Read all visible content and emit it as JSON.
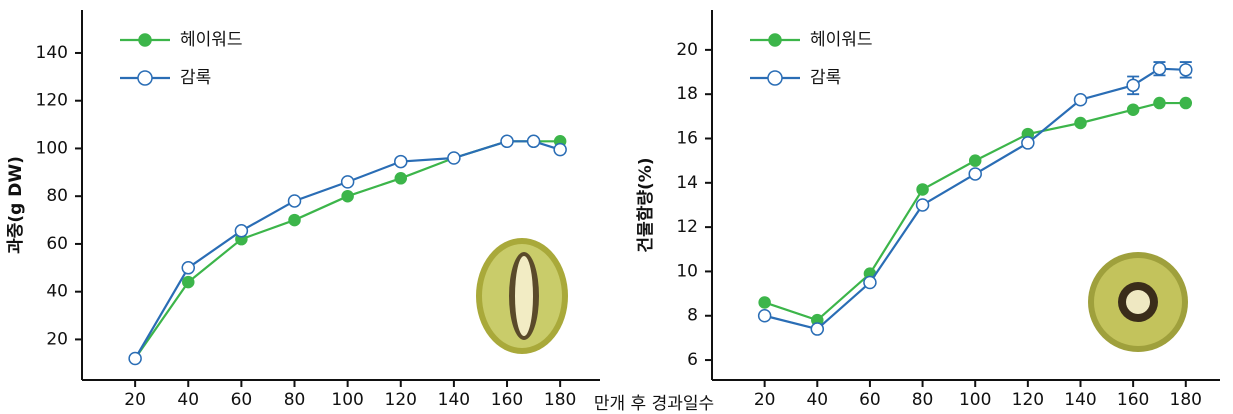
{
  "chart_data": [
    {
      "type": "line",
      "ylabel": "과중(g DW)",
      "xlabel": "만개 후 경과일수",
      "x": [
        20,
        40,
        60,
        80,
        100,
        120,
        140,
        160,
        170,
        180
      ],
      "xlim": [
        0,
        195
      ],
      "xticks": [
        20,
        40,
        60,
        80,
        100,
        120,
        140,
        160,
        180
      ],
      "ylim": [
        3,
        158
      ],
      "yticks": [
        20,
        40,
        60,
        80,
        100,
        120,
        140
      ],
      "series": [
        {
          "name": "헤이워드",
          "color": "#3cb54a",
          "marker": "filled",
          "values": [
            12,
            44,
            62,
            70,
            80,
            87.5,
            96,
            103,
            103,
            103
          ]
        },
        {
          "name": "감록",
          "color": "#2a6db5",
          "marker": "open",
          "values": [
            12,
            50,
            65.5,
            78,
            86,
            94.5,
            96,
            103,
            103,
            99.5
          ]
        }
      ]
    },
    {
      "type": "line",
      "ylabel": "건물함량(%)",
      "x": [
        20,
        40,
        60,
        80,
        100,
        120,
        140,
        160,
        170,
        180
      ],
      "xlim": [
        0,
        193
      ],
      "xticks": [
        20,
        40,
        60,
        80,
        100,
        120,
        140,
        160,
        180
      ],
      "ylim": [
        5.1,
        21.8
      ],
      "yticks": [
        6,
        8,
        10,
        12,
        14,
        16,
        18,
        20
      ],
      "series": [
        {
          "name": "헤이워드",
          "color": "#3cb54a",
          "marker": "filled",
          "values": [
            8.6,
            7.8,
            9.9,
            13.7,
            15,
            16.2,
            16.7,
            17.3,
            17.6,
            17.6
          ]
        },
        {
          "name": "감록",
          "color": "#2a6db5",
          "marker": "open",
          "values": [
            8.0,
            7.4,
            9.5,
            13.0,
            14.4,
            15.8,
            17.75,
            18.4,
            19.15,
            19.1
          ],
          "errors": [
            null,
            null,
            null,
            null,
            null,
            null,
            null,
            0.4,
            0.3,
            0.35
          ]
        }
      ]
    }
  ]
}
